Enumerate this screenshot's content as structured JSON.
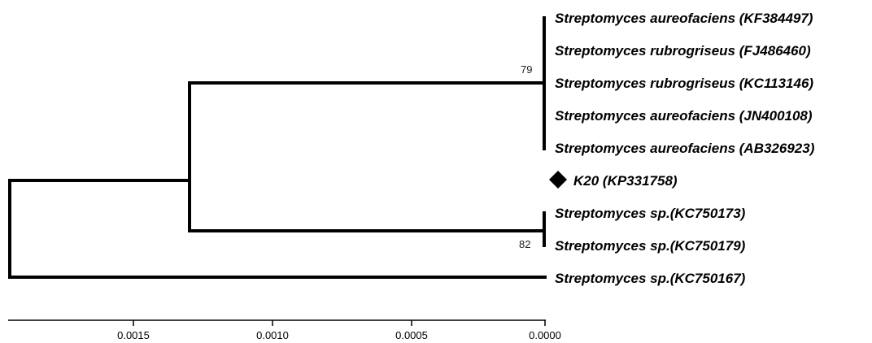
{
  "tree": {
    "leaves": [
      {
        "label": "Streptomyces aureofaciens (KF384497)"
      },
      {
        "label": "Streptomyces rubrogriseus (FJ486460)"
      },
      {
        "label": "Streptomyces rubrogriseus (KC113146)"
      },
      {
        "label": "Streptomyces aureofaciens (JN400108)"
      },
      {
        "label": "Streptomyces aureofaciens (AB326923)"
      },
      {
        "label": "K20 (KP331758)",
        "marker": "diamond"
      },
      {
        "label": "Streptomyces sp.(KC750173)"
      },
      {
        "label": "Streptomyces sp.(KC750179)"
      },
      {
        "label": "Streptomyces sp.(KC750167)"
      }
    ],
    "bootstrap": {
      "aureofaciens_clade": "79",
      "sp_clade": "82"
    }
  },
  "scale_axis": {
    "ticks": [
      "0.0015",
      "0.0010",
      "0.0005",
      "0.0000"
    ]
  }
}
